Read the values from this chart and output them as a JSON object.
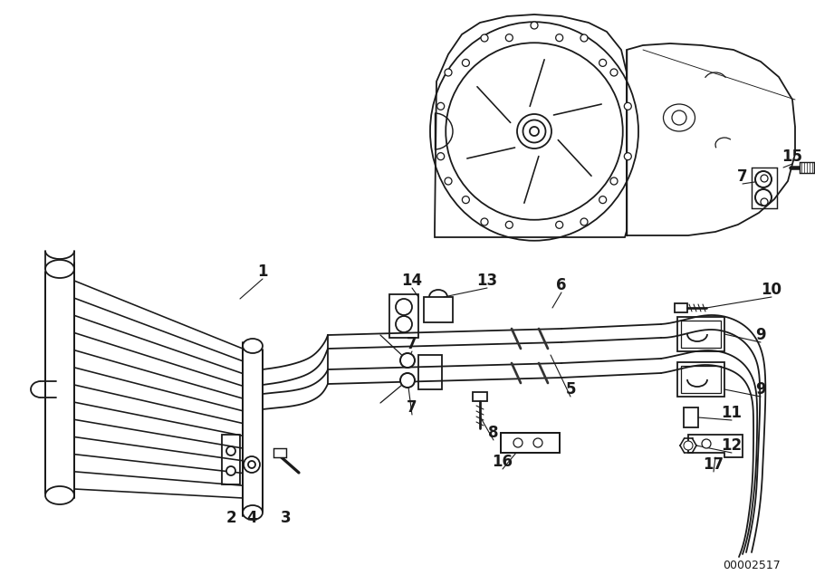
{
  "bg_color": "#ffffff",
  "lc": "#1a1a1a",
  "lw": 1.3,
  "diagram_id": "00002517",
  "fig_w": 9.0,
  "fig_h": 6.35,
  "dpi": 100
}
